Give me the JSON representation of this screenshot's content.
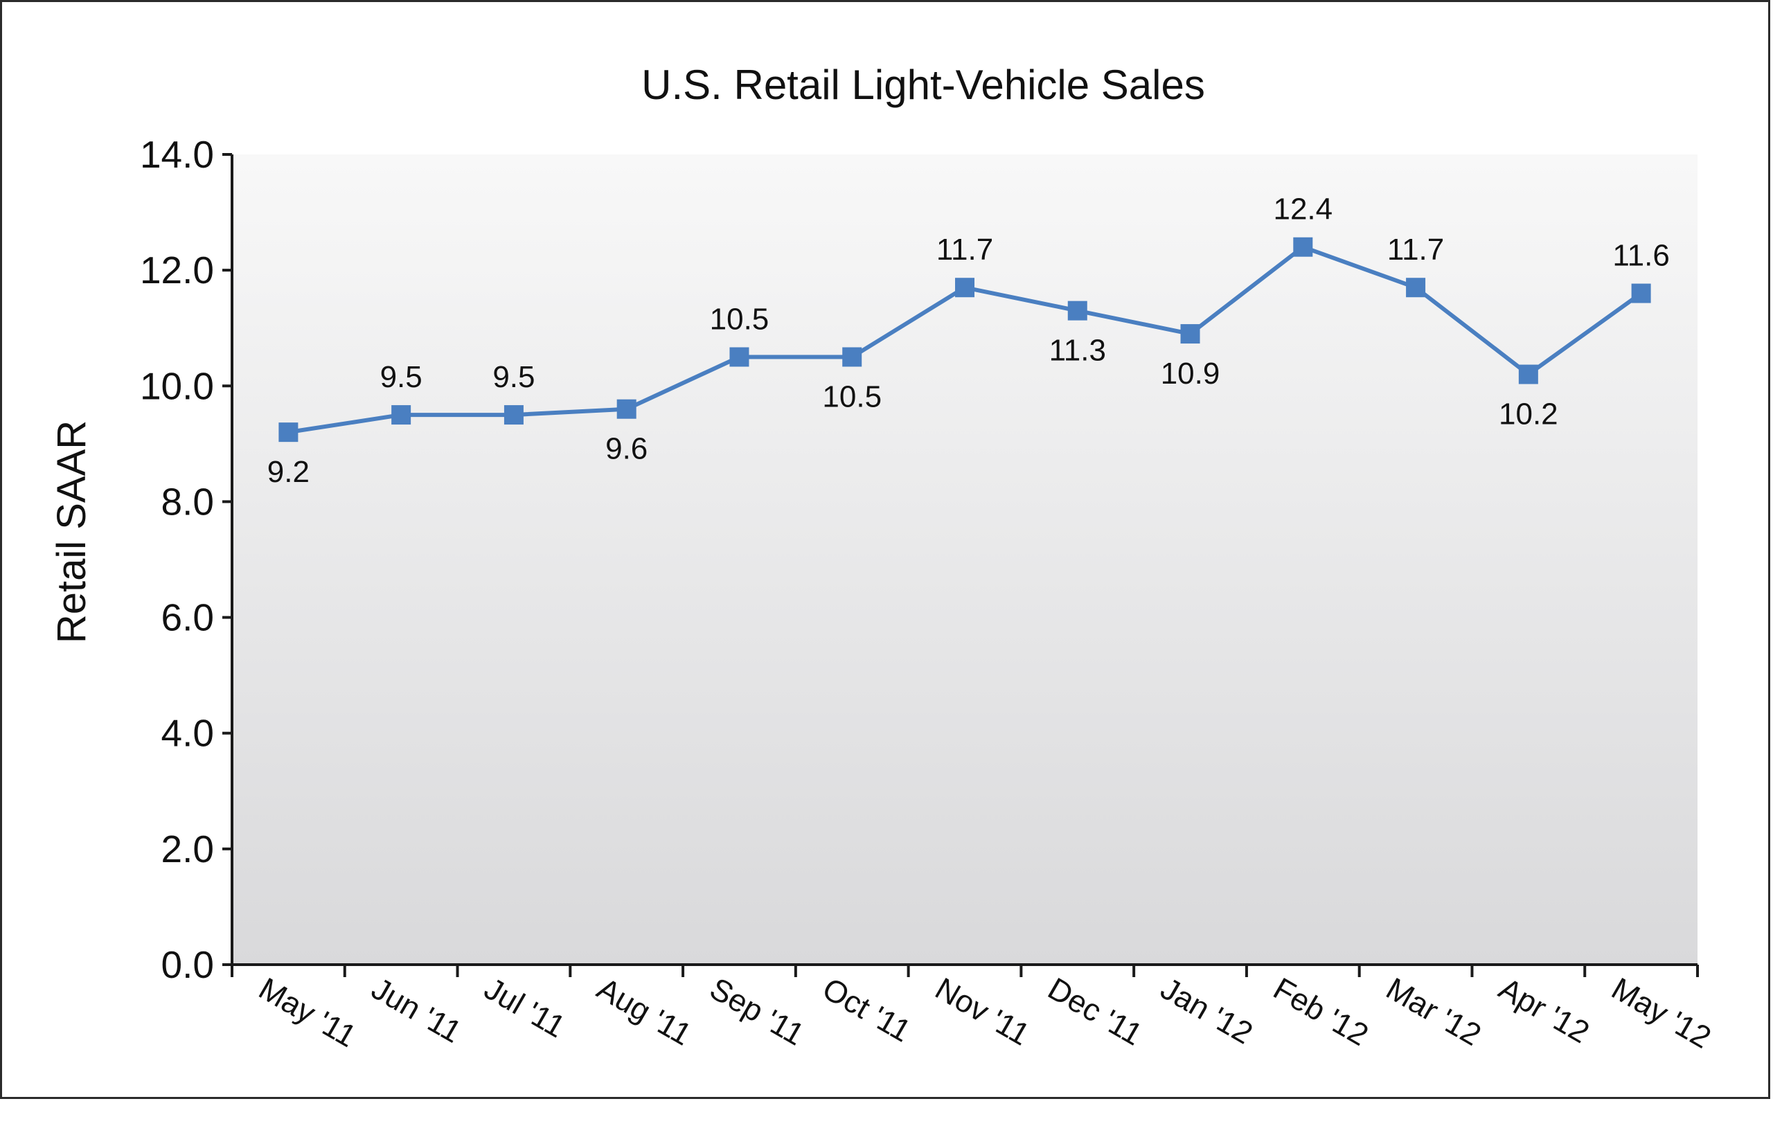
{
  "chart_data": {
    "type": "line",
    "title": "U.S. Retail Light-Vehicle Sales",
    "xlabel": "",
    "ylabel": "Retail SAAR",
    "ylim": [
      0,
      14
    ],
    "yticks": [
      "0.0",
      "2.0",
      "4.0",
      "6.0",
      "8.0",
      "10.0",
      "12.0",
      "14.0"
    ],
    "grid": false,
    "legend": "none",
    "categories": [
      "May '11",
      "Jun '11",
      "Jul '11",
      "Aug '11",
      "Sep '11",
      "Oct '11",
      "Nov '11",
      "Dec '11",
      "Jan '12",
      "Feb '12",
      "Mar '12",
      "Apr '12",
      "May '12"
    ],
    "series": [
      {
        "values": [
          9.2,
          9.5,
          9.5,
          9.6,
          10.5,
          10.5,
          11.7,
          11.3,
          10.9,
          12.4,
          11.7,
          10.2,
          11.6
        ],
        "labels": [
          "9.2",
          "9.5",
          "9.5",
          "9.6",
          "10.5",
          "10.5",
          "11.7",
          "11.3",
          "10.9",
          "12.4",
          "11.7",
          "10.2",
          "11.6"
        ],
        "label_position": [
          "below",
          "above",
          "above",
          "below",
          "above",
          "below",
          "above",
          "below",
          "below",
          "above",
          "above",
          "below",
          "above"
        ],
        "color": "#4a7fc1"
      }
    ],
    "colors": {
      "line": "#4a7fc1",
      "plot_bg_top": "#f8f8f8",
      "plot_bg_bottom": "#d9d9db",
      "axis": "#1a1a1a"
    }
  }
}
